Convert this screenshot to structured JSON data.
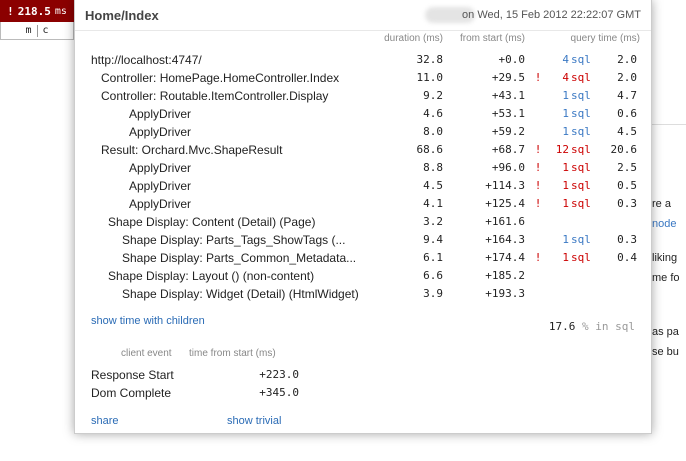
{
  "badge": {
    "prefix": "!",
    "value": "218.5",
    "unit": "ms"
  },
  "mini_bar": {
    "m": "m",
    "c": "c"
  },
  "background_snippets": [
    "re a",
    "node",
    "liking",
    "me fo",
    "as pa",
    "se bu"
  ],
  "popup": {
    "title": "Home/Index",
    "timestamp": "on Wed, 15 Feb 2012 22:22:07 GMT",
    "columns": {
      "duration": "duration (ms)",
      "from_start": "from start (ms)",
      "query_time": "query time (ms)"
    },
    "rows": [
      {
        "label": "http://localhost:4747/",
        "indent": 0,
        "duration": "32.8",
        "start": "+0.0",
        "warn": "",
        "queries": "4",
        "sql": "sql",
        "qtime": "2.0"
      },
      {
        "label": "Controller: HomePage.HomeController.Index",
        "indent": 1,
        "duration": "11.0",
        "start": "+29.5",
        "warn": "!",
        "queries": "4",
        "sql": "sql",
        "qtime": "2.0"
      },
      {
        "label": "Controller: Routable.ItemController.Display",
        "indent": 1,
        "duration": "9.2",
        "start": "+43.1",
        "warn": "",
        "queries": "1",
        "sql": "sql",
        "qtime": "4.7"
      },
      {
        "label": "ApplyDriver",
        "indent": 3,
        "duration": "4.6",
        "start": "+53.1",
        "warn": "",
        "queries": "1",
        "sql": "sql",
        "qtime": "0.6"
      },
      {
        "label": "ApplyDriver",
        "indent": 3,
        "duration": "8.0",
        "start": "+59.2",
        "warn": "",
        "queries": "1",
        "sql": "sql",
        "qtime": "4.5"
      },
      {
        "label": "Result: Orchard.Mvc.ShapeResult",
        "indent": 1,
        "duration": "68.6",
        "start": "+68.7",
        "warn": "!",
        "queries": "12",
        "sql": "sql",
        "qtime": "20.6"
      },
      {
        "label": "ApplyDriver",
        "indent": 3,
        "duration": "8.8",
        "start": "+96.0",
        "warn": "!",
        "queries": "1",
        "sql": "sql",
        "qtime": "2.5"
      },
      {
        "label": "ApplyDriver",
        "indent": 3,
        "duration": "4.5",
        "start": "+114.3",
        "warn": "!",
        "queries": "1",
        "sql": "sql",
        "qtime": "0.5"
      },
      {
        "label": "ApplyDriver",
        "indent": 3,
        "duration": "4.1",
        "start": "+125.4",
        "warn": "!",
        "queries": "1",
        "sql": "sql",
        "qtime": "0.3"
      },
      {
        "label": "Shape Display: Content (Detail) (Page)",
        "indent": 2,
        "duration": "3.2",
        "start": "+161.6",
        "warn": "",
        "queries": "",
        "sql": "",
        "qtime": ""
      },
      {
        "label": "Shape Display: Parts_Tags_ShowTags (...",
        "indent": 2.5,
        "duration": "9.4",
        "start": "+164.3",
        "warn": "",
        "queries": "1",
        "sql": "sql",
        "qtime": "0.3"
      },
      {
        "label": "Shape Display: Parts_Common_Metadata...",
        "indent": 2.5,
        "duration": "6.1",
        "start": "+174.4",
        "warn": "!",
        "queries": "1",
        "sql": "sql",
        "qtime": "0.4"
      },
      {
        "label": "Shape Display: Layout () (non-content)",
        "indent": 2,
        "duration": "6.6",
        "start": "+185.2",
        "warn": "",
        "queries": "",
        "sql": "",
        "qtime": ""
      },
      {
        "label": "Shape Display: Widget (Detail) (HtmlWidget)",
        "indent": 2.5,
        "duration": "3.9",
        "start": "+193.3",
        "warn": "",
        "queries": "",
        "sql": "",
        "qtime": ""
      }
    ],
    "show_children_label": "show time with children",
    "pct_sql": {
      "value": "17.6",
      "suffix": "% in sql"
    },
    "client": {
      "col_event": "client event",
      "col_time": "time from start (ms)",
      "events": [
        {
          "name": "Response Start",
          "time": "+223.0"
        },
        {
          "name": "Dom Complete",
          "time": "+345.0"
        }
      ]
    },
    "share_label": "share",
    "trivial_label": "show trivial"
  }
}
